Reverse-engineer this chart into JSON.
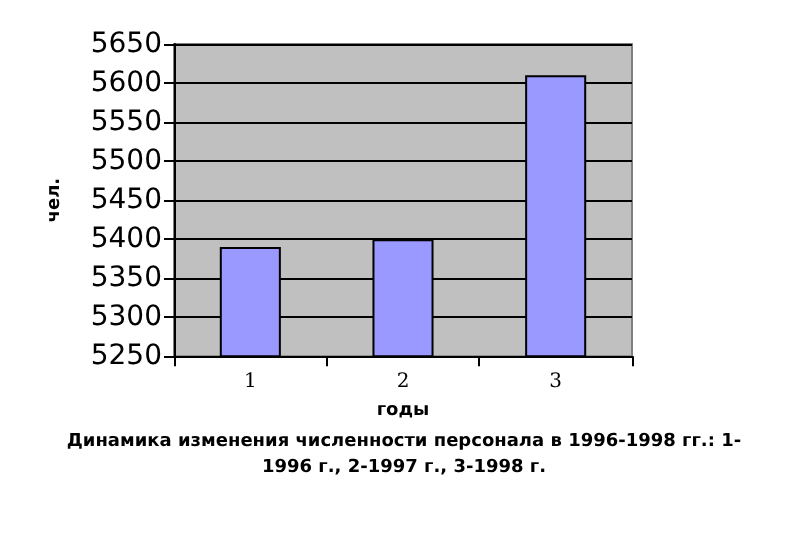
{
  "chart_data": {
    "type": "bar",
    "categories": [
      "1",
      "2",
      "3"
    ],
    "values": [
      5390,
      5400,
      5610
    ],
    "color": "#9999ff",
    "xlabel": "годы",
    "ylabel": "чел.",
    "annotations": [
      "Динамика изменения численности персонала в 1996-1998 гг.: 1-1996 г., 2-1997 г., 3-1998 г."
    ],
    "ylim": [
      5250,
      5650
    ],
    "yticks": [
      5250,
      5300,
      5350,
      5400,
      5450,
      5500,
      5550,
      5600,
      5650
    ],
    "grid": "y"
  }
}
